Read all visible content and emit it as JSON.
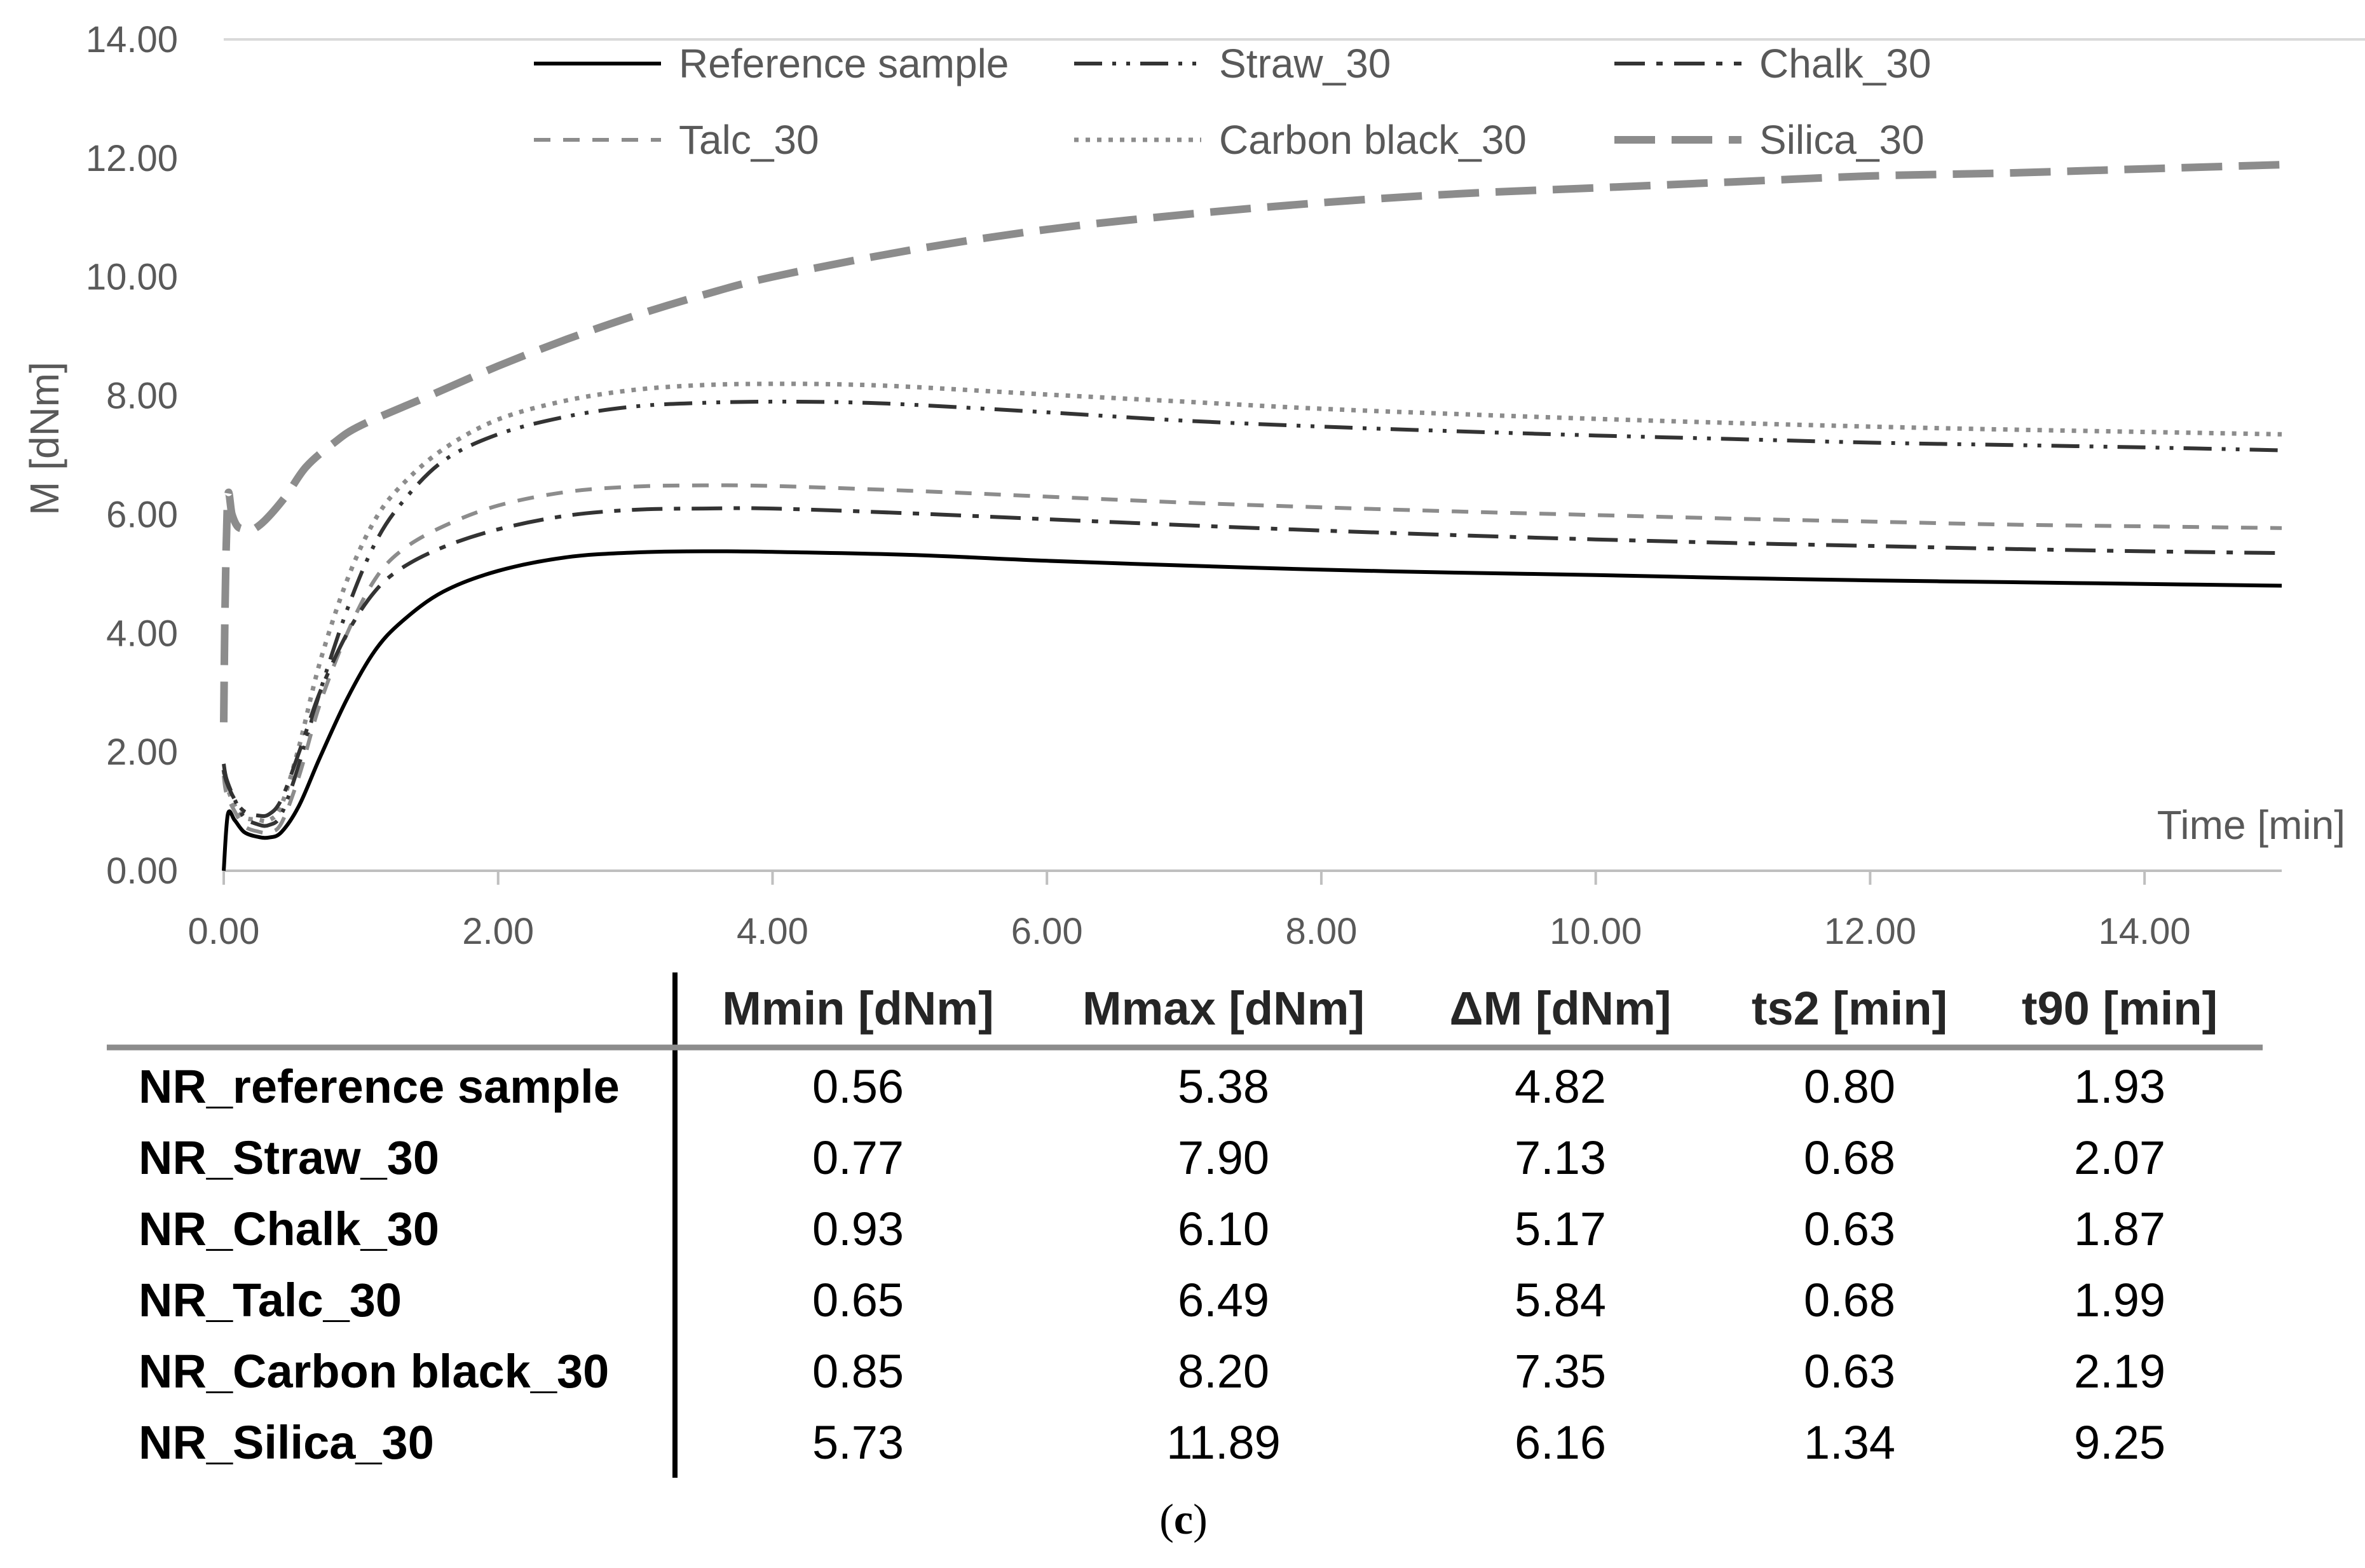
{
  "chart_data": {
    "type": "line",
    "title": "",
    "xlabel": "Time [min]",
    "ylabel": "M [dNm]",
    "xlim": [
      0,
      15
    ],
    "ylim": [
      0,
      14
    ],
    "x_ticks": [
      "0.00",
      "2.00",
      "4.00",
      "6.00",
      "8.00",
      "10.00",
      "12.00",
      "14.00"
    ],
    "y_ticks": [
      "0.00",
      "2.00",
      "4.00",
      "6.00",
      "8.00",
      "10.00",
      "12.00",
      "14.00"
    ],
    "legend_position": "top",
    "series": [
      {
        "name": "Reference sample",
        "color": "#000000",
        "style": "solid",
        "x": [
          0,
          0.03,
          0.08,
          0.15,
          0.25,
          0.33,
          0.42,
          0.55,
          0.7,
          0.9,
          1.1,
          1.3,
          1.6,
          2.0,
          2.5,
          3.0,
          3.5,
          4.0,
          5.0,
          6.0,
          7.0,
          8.0,
          9.0,
          10.0,
          11.0,
          12.0,
          13.0,
          14.0,
          15.0
        ],
        "y": [
          0.0,
          0.95,
          0.85,
          0.65,
          0.57,
          0.56,
          0.65,
          1.1,
          1.9,
          2.9,
          3.7,
          4.2,
          4.7,
          5.05,
          5.28,
          5.36,
          5.38,
          5.37,
          5.32,
          5.22,
          5.14,
          5.07,
          5.02,
          4.98,
          4.93,
          4.89,
          4.86,
          4.83,
          4.8
        ]
      },
      {
        "name": "Straw_30",
        "color": "#333333",
        "style": "dash-dot-dot",
        "x": [
          0,
          0.02,
          0.08,
          0.15,
          0.25,
          0.33,
          0.42,
          0.55,
          0.7,
          0.9,
          1.1,
          1.3,
          1.6,
          2.0,
          2.5,
          3.0,
          3.5,
          4.0,
          4.5,
          5.0,
          6.0,
          7.0,
          8.0,
          9.0,
          10.0,
          11.0,
          12.0,
          13.0,
          14.0,
          15.0
        ],
        "y": [
          1.8,
          1.55,
          1.2,
          0.9,
          0.78,
          0.77,
          0.95,
          1.8,
          3.0,
          4.4,
          5.5,
          6.2,
          6.9,
          7.35,
          7.65,
          7.82,
          7.88,
          7.9,
          7.89,
          7.85,
          7.72,
          7.58,
          7.48,
          7.4,
          7.33,
          7.27,
          7.21,
          7.17,
          7.13,
          7.08
        ]
      },
      {
        "name": "Chalk_30",
        "color": "#333333",
        "style": "dash-dot",
        "x": [
          0,
          0.02,
          0.08,
          0.15,
          0.25,
          0.33,
          0.42,
          0.55,
          0.7,
          0.9,
          1.1,
          1.3,
          1.6,
          2.0,
          2.5,
          3.0,
          3.5,
          4.0,
          5.0,
          6.0,
          7.0,
          8.0,
          9.0,
          10.0,
          11.0,
          12.0,
          13.0,
          14.0,
          15.0
        ],
        "y": [
          1.7,
          1.5,
          1.2,
          1.0,
          0.93,
          0.95,
          1.2,
          2.0,
          3.0,
          4.0,
          4.7,
          5.1,
          5.45,
          5.75,
          5.98,
          6.08,
          6.1,
          6.1,
          6.02,
          5.92,
          5.82,
          5.73,
          5.65,
          5.58,
          5.52,
          5.47,
          5.42,
          5.38,
          5.35
        ]
      },
      {
        "name": "Talc_30",
        "color": "#8c8c8c",
        "style": "dashed",
        "x": [
          0,
          0.02,
          0.08,
          0.15,
          0.25,
          0.33,
          0.42,
          0.55,
          0.7,
          0.9,
          1.1,
          1.3,
          1.6,
          2.0,
          2.5,
          3.0,
          3.5,
          4.0,
          5.0,
          6.0,
          7.0,
          8.0,
          9.0,
          10.0,
          11.0,
          12.0,
          13.0,
          14.0,
          15.0
        ],
        "y": [
          1.6,
          1.3,
          1.0,
          0.75,
          0.66,
          0.65,
          0.8,
          1.6,
          2.8,
          4.0,
          4.9,
          5.4,
          5.8,
          6.15,
          6.38,
          6.47,
          6.49,
          6.48,
          6.4,
          6.3,
          6.2,
          6.12,
          6.05,
          5.99,
          5.93,
          5.88,
          5.83,
          5.8,
          5.77
        ]
      },
      {
        "name": "Carbon black_30",
        "color": "#8c8c8c",
        "style": "dotted",
        "x": [
          0,
          0.02,
          0.08,
          0.15,
          0.25,
          0.33,
          0.42,
          0.55,
          0.7,
          0.9,
          1.1,
          1.3,
          1.6,
          2.0,
          2.5,
          3.0,
          3.5,
          4.0,
          4.5,
          5.0,
          6.0,
          7.0,
          8.0,
          9.0,
          10.0,
          11.0,
          12.0,
          13.0,
          14.0,
          15.0
        ],
        "y": [
          1.7,
          1.45,
          1.1,
          0.9,
          0.86,
          0.85,
          1.1,
          2.1,
          3.5,
          4.9,
          5.9,
          6.5,
          7.1,
          7.6,
          7.92,
          8.1,
          8.18,
          8.2,
          8.19,
          8.15,
          8.02,
          7.9,
          7.78,
          7.69,
          7.61,
          7.54,
          7.48,
          7.43,
          7.39,
          7.35
        ]
      },
      {
        "name": "Silica_30",
        "color": "#8c8c8c",
        "style": "long-dash",
        "x": [
          0,
          0.01,
          0.03,
          0.06,
          0.1,
          0.15,
          0.2,
          0.3,
          0.45,
          0.6,
          0.8,
          1.0,
          1.5,
          2.0,
          2.5,
          3.0,
          3.5,
          4.0,
          5.0,
          6.0,
          7.0,
          8.0,
          9.0,
          10.0,
          11.0,
          12.0,
          13.0,
          14.0,
          15.0
        ],
        "y": [
          2.5,
          4.5,
          6.3,
          6.0,
          5.8,
          5.75,
          5.73,
          5.9,
          6.3,
          6.8,
          7.2,
          7.5,
          8.0,
          8.5,
          8.95,
          9.35,
          9.7,
          10.0,
          10.45,
          10.8,
          11.05,
          11.25,
          11.4,
          11.5,
          11.6,
          11.7,
          11.75,
          11.82,
          11.89
        ]
      }
    ]
  },
  "table": {
    "headers": [
      "Mmin [dNm]",
      "Mmax [dNm]",
      "ΔM [dNm]",
      "ts2 [min]",
      "t90 [min]"
    ],
    "rows": [
      {
        "label": "NR_reference sample",
        "values": [
          "0.56",
          "5.38",
          "4.82",
          "0.80",
          "1.93"
        ]
      },
      {
        "label": "NR_Straw_30",
        "values": [
          "0.77",
          "7.90",
          "7.13",
          "0.68",
          "2.07"
        ]
      },
      {
        "label": "NR_Chalk_30",
        "values": [
          "0.93",
          "6.10",
          "5.17",
          "0.63",
          "1.87"
        ]
      },
      {
        "label": "NR_Talc_30",
        "values": [
          "0.65",
          "6.49",
          "5.84",
          "0.68",
          "1.99"
        ]
      },
      {
        "label": "NR_Carbon black_30",
        "values": [
          "0.85",
          "8.20",
          "7.35",
          "0.63",
          "2.19"
        ]
      },
      {
        "label": "NR_Silica_30",
        "values": [
          "5.73",
          "11.89",
          "6.16",
          "1.34",
          "9.25"
        ]
      }
    ]
  },
  "caption": {
    "open": "(",
    "letter": "c",
    "close": ")"
  }
}
